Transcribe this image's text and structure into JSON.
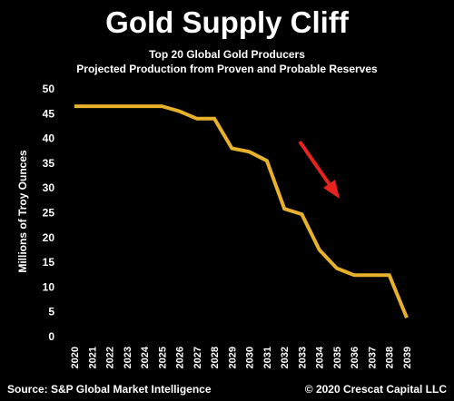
{
  "chart_data": {
    "type": "line",
    "title": "Gold Supply Cliff",
    "subtitle_lines": [
      "Top 20 Global Gold Producers",
      "Projected Production from Proven and Probable Reserves"
    ],
    "ylabel": "Millions of Troy Ounces",
    "xlabel": "",
    "ylim": [
      0,
      50
    ],
    "yticks": [
      0,
      5,
      10,
      15,
      20,
      25,
      30,
      35,
      40,
      45,
      50
    ],
    "x": [
      "2020",
      "2021",
      "2022",
      "2023",
      "2024",
      "2025",
      "2026",
      "2027",
      "2028",
      "2029",
      "2030",
      "2031",
      "2032",
      "2033",
      "2034",
      "2035",
      "2036",
      "2037",
      "2038",
      "2039"
    ],
    "series": [
      {
        "values": [
          46.5,
          46.5,
          46.5,
          46.5,
          46.5,
          46.5,
          45.5,
          44,
          44,
          38,
          37.3,
          35.5,
          25.8,
          24.7,
          17.5,
          13.8,
          12.4,
          12.4,
          12.4,
          3.8
        ]
      }
    ],
    "grid": false,
    "line_color": "#e8b12b",
    "annotation": {
      "type": "arrow",
      "color": "#e8231e",
      "direction": "down-right"
    },
    "source": "Source: S&P Global Market Intelligence",
    "copyright": "© 2020 Crescat Capital LLC"
  }
}
